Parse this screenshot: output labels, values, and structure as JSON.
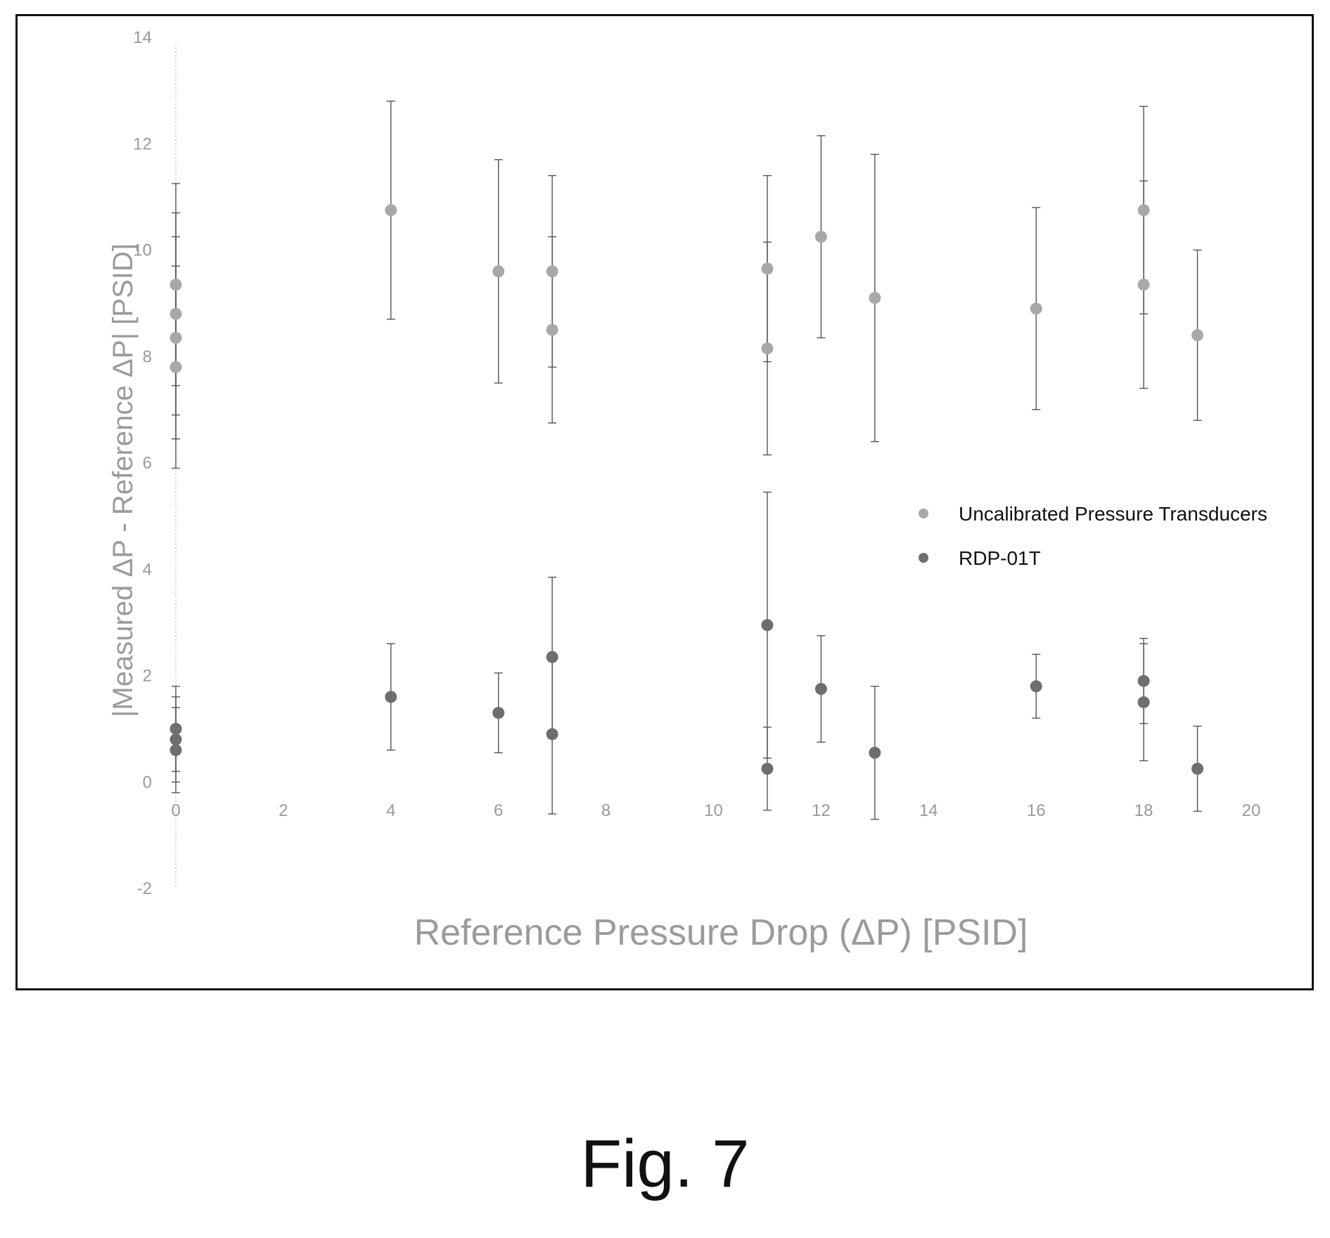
{
  "chart_data": {
    "type": "scatter",
    "title": "",
    "xlabel": "Reference Pressure Drop (ΔP) [PSID]",
    "ylabel": "|Measured ΔP - Reference ΔP| [PSID]",
    "xlim": [
      0,
      20
    ],
    "ylim": [
      -2,
      14
    ],
    "xticks": [
      "0",
      "2",
      "4",
      "6",
      "8",
      "10",
      "12",
      "14",
      "16",
      "18",
      "20"
    ],
    "yticks": [
      "-2",
      "0",
      "2",
      "4",
      "6",
      "8",
      "10",
      "12",
      "14"
    ],
    "grid": false,
    "legend_position": "right",
    "error_bars": true,
    "series": [
      {
        "name": "Uncalibrated Pressure Transducers",
        "color": "#a8a8a8",
        "points": [
          {
            "x": 0,
            "y": 9.35,
            "err": 1.9
          },
          {
            "x": 0,
            "y": 8.8,
            "err": 1.9
          },
          {
            "x": 0,
            "y": 8.35,
            "err": 1.9
          },
          {
            "x": 0,
            "y": 7.8,
            "err": 1.9
          },
          {
            "x": 4,
            "y": 10.75,
            "err": 2.05
          },
          {
            "x": 6,
            "y": 9.6,
            "err": 2.1
          },
          {
            "x": 7,
            "y": 9.6,
            "err": 1.8
          },
          {
            "x": 7,
            "y": 8.5,
            "err": 1.75
          },
          {
            "x": 11,
            "y": 9.65,
            "err": 1.75
          },
          {
            "x": 11,
            "y": 8.15,
            "err": 2.0
          },
          {
            "x": 12,
            "y": 10.25,
            "err": 1.9
          },
          {
            "x": 13,
            "y": 9.1,
            "err": 2.7
          },
          {
            "x": 16,
            "y": 8.9,
            "err": 1.9
          },
          {
            "x": 18,
            "y": 10.75,
            "err": 1.95
          },
          {
            "x": 18,
            "y": 9.35,
            "err": 1.95
          },
          {
            "x": 19,
            "y": 8.4,
            "err": 1.6
          }
        ]
      },
      {
        "name": "RDP-01T",
        "color": "#6e6e6e",
        "points": [
          {
            "x": 0,
            "y": 1.0,
            "err": 0.8
          },
          {
            "x": 0,
            "y": 0.8,
            "err": 0.8
          },
          {
            "x": 0,
            "y": 0.6,
            "err": 0.8
          },
          {
            "x": 4,
            "y": 1.6,
            "err": 1.0
          },
          {
            "x": 6,
            "y": 1.3,
            "err": 0.75
          },
          {
            "x": 7,
            "y": 2.35,
            "err": 1.5
          },
          {
            "x": 7,
            "y": 0.9,
            "err": 1.5
          },
          {
            "x": 11,
            "y": 2.95,
            "err": 2.5
          },
          {
            "x": 11,
            "y": 0.25,
            "err": 0.78
          },
          {
            "x": 12,
            "y": 1.75,
            "err": 1.0
          },
          {
            "x": 13,
            "y": 0.55,
            "err": 1.25
          },
          {
            "x": 16,
            "y": 1.8,
            "err": 0.6
          },
          {
            "x": 18,
            "y": 1.9,
            "err": 0.8
          },
          {
            "x": 18,
            "y": 1.5,
            "err": 1.1
          },
          {
            "x": 19,
            "y": 0.25,
            "err": 0.8
          }
        ]
      }
    ]
  },
  "caption": "Fig. 7"
}
